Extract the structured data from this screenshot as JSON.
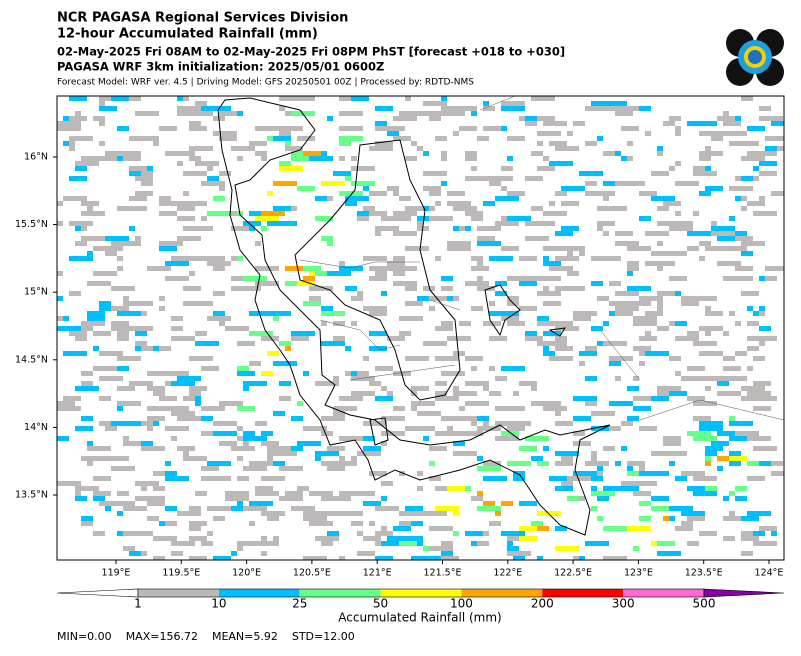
{
  "header": {
    "lines": [
      "NCR PAGASA Regional Services Division",
      "12-hour Accumulated Rainfall (mm)",
      "02-May-2025 Fri 08AM to 02-May-2025 Fri 08PM PhST [forecast +018 to +030]",
      "PAGASA WRF 3km initialization: 2025/05/01 0600Z",
      "Forecast Model: WRF ver. 4.5 | Driving Model: GFS 20250501 00Z | Processed by: RDTD-NMS"
    ]
  },
  "map": {
    "lat_labels": [
      "16°N",
      "15.5°N",
      "15°N",
      "14.5°N",
      "14°N",
      "13.5°N"
    ],
    "lon_labels": [
      "119°E",
      "119.5°E",
      "120°E",
      "120.5°E",
      "121°E",
      "121.5°E",
      "122°E",
      "122.5°E",
      "123°E",
      "123.5°E",
      "124°E"
    ]
  },
  "colorbar": {
    "ticks": [
      1,
      10,
      25,
      50,
      100,
      200,
      300,
      500
    ],
    "colors": [
      "#bdb9b9",
      "#00bfff",
      "#66ff88",
      "#ffff00",
      "#ffa500",
      "#ff0000",
      "#ff6ad5",
      "#8a00a8"
    ],
    "label": "Accumulated Rainfall (mm)"
  },
  "stats": [
    "MIN=0.00",
    "MAX=156.72",
    "MEAN=5.92",
    "STD=12.00"
  ]
}
